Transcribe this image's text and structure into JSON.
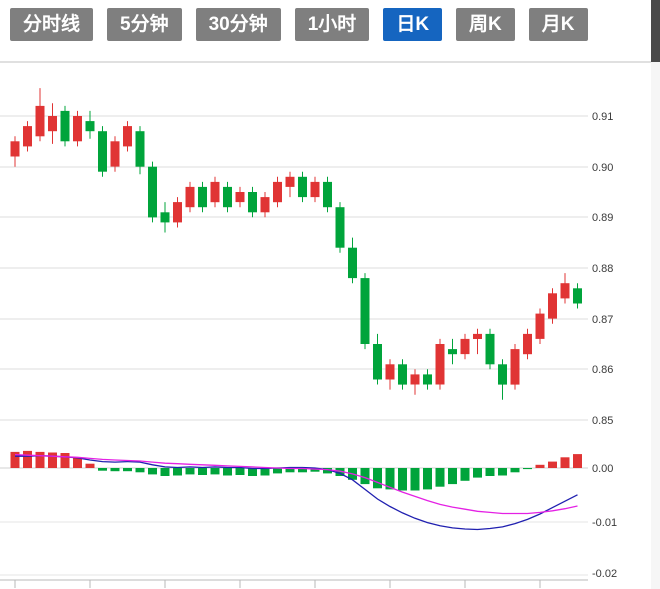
{
  "toolbar": {
    "buttons": [
      {
        "label": "分时线",
        "active": false
      },
      {
        "label": "5分钟",
        "active": false
      },
      {
        "label": "30分钟",
        "active": false
      },
      {
        "label": "1小时",
        "active": false
      },
      {
        "label": "日K",
        "active": true
      },
      {
        "label": "周K",
        "active": false
      },
      {
        "label": "月K",
        "active": false
      }
    ],
    "active_color": "#1565c0",
    "inactive_color": "#7f7f7f"
  },
  "colors": {
    "up": "#e03434",
    "down": "#00a43b",
    "dif_line": "#2020b0",
    "dea_line": "#e421e4",
    "grid": "#dcdcdc",
    "axis_text": "#3a3a3a"
  },
  "chart_data": {
    "type": "candlestick+macd",
    "convention": "red=up, green=down (CN style)",
    "price_tick_labels": [
      "0.91",
      "0.90",
      "0.89",
      "0.88",
      "0.87",
      "0.86",
      "0.85"
    ],
    "macd_tick_labels": [
      "0.00",
      "-0.01",
      "-0.02"
    ],
    "price_axis_range": [
      0.846,
      0.921
    ],
    "macd_axis_range": [
      -0.021,
      0.003
    ],
    "candles_ohlc": [
      [
        0.902,
        0.906,
        0.9,
        0.905
      ],
      [
        0.904,
        0.909,
        0.903,
        0.908
      ],
      [
        0.906,
        0.9155,
        0.905,
        0.912
      ],
      [
        0.907,
        0.9125,
        0.9045,
        0.91
      ],
      [
        0.911,
        0.912,
        0.904,
        0.905
      ],
      [
        0.905,
        0.911,
        0.904,
        0.91
      ],
      [
        0.909,
        0.911,
        0.9055,
        0.907
      ],
      [
        0.907,
        0.908,
        0.898,
        0.899
      ],
      [
        0.9,
        0.906,
        0.899,
        0.905
      ],
      [
        0.904,
        0.909,
        0.903,
        0.908
      ],
      [
        0.907,
        0.908,
        0.8985,
        0.9
      ],
      [
        0.9,
        0.901,
        0.889,
        0.89
      ],
      [
        0.891,
        0.893,
        0.887,
        0.889
      ],
      [
        0.889,
        0.894,
        0.888,
        0.893
      ],
      [
        0.892,
        0.897,
        0.891,
        0.896
      ],
      [
        0.896,
        0.897,
        0.891,
        0.892
      ],
      [
        0.893,
        0.898,
        0.892,
        0.897
      ],
      [
        0.896,
        0.897,
        0.891,
        0.892
      ],
      [
        0.893,
        0.896,
        0.892,
        0.895
      ],
      [
        0.895,
        0.896,
        0.89,
        0.891
      ],
      [
        0.891,
        0.895,
        0.89,
        0.894
      ],
      [
        0.893,
        0.898,
        0.892,
        0.897
      ],
      [
        0.896,
        0.899,
        0.894,
        0.898
      ],
      [
        0.898,
        0.899,
        0.893,
        0.894
      ],
      [
        0.894,
        0.898,
        0.893,
        0.897
      ],
      [
        0.897,
        0.898,
        0.891,
        0.892
      ],
      [
        0.892,
        0.893,
        0.883,
        0.884
      ],
      [
        0.884,
        0.886,
        0.877,
        0.878
      ],
      [
        0.878,
        0.879,
        0.864,
        0.865
      ],
      [
        0.865,
        0.867,
        0.857,
        0.858
      ],
      [
        0.858,
        0.862,
        0.856,
        0.861
      ],
      [
        0.861,
        0.862,
        0.856,
        0.857
      ],
      [
        0.857,
        0.86,
        0.855,
        0.859
      ],
      [
        0.859,
        0.86,
        0.856,
        0.857
      ],
      [
        0.857,
        0.866,
        0.856,
        0.865
      ],
      [
        0.864,
        0.866,
        0.861,
        0.863
      ],
      [
        0.863,
        0.867,
        0.862,
        0.866
      ],
      [
        0.866,
        0.868,
        0.863,
        0.867
      ],
      [
        0.867,
        0.868,
        0.86,
        0.861
      ],
      [
        0.861,
        0.862,
        0.854,
        0.857
      ],
      [
        0.857,
        0.865,
        0.856,
        0.864
      ],
      [
        0.863,
        0.868,
        0.862,
        0.867
      ],
      [
        0.866,
        0.872,
        0.865,
        0.871
      ],
      [
        0.87,
        0.876,
        0.869,
        0.875
      ],
      [
        0.874,
        0.879,
        0.873,
        0.877
      ],
      [
        0.876,
        0.877,
        0.872,
        0.873
      ]
    ],
    "macd": {
      "hist": [
        0.003,
        0.0032,
        0.003,
        0.0029,
        0.0028,
        0.002,
        0.0008,
        -0.0005,
        -0.0006,
        -0.0006,
        -0.0008,
        -0.0012,
        -0.0015,
        -0.0014,
        -0.0012,
        -0.0013,
        -0.0012,
        -0.0014,
        -0.0013,
        -0.0015,
        -0.0014,
        -0.001,
        -0.0008,
        -0.0008,
        -0.0007,
        -0.001,
        -0.0015,
        -0.0022,
        -0.003,
        -0.0038,
        -0.004,
        -0.0042,
        -0.0042,
        -0.004,
        -0.0035,
        -0.003,
        -0.0024,
        -0.0018,
        -0.0015,
        -0.0014,
        -0.0008,
        -0.0002,
        0.0006,
        0.0012,
        0.002,
        0.0026
      ],
      "dif": [
        0.0022,
        0.0022,
        0.0023,
        0.0022,
        0.0021,
        0.0019,
        0.0015,
        0.0012,
        0.0011,
        0.0012,
        0.0011,
        0.0006,
        0.0002,
        0.0001,
        0.0002,
        0.0001,
        0.0002,
        0.0001,
        0.0001,
        -0.0001,
        -0.0001,
        0.0,
        0.0001,
        0.0001,
        0.0,
        -0.0003,
        -0.001,
        -0.0022,
        -0.004,
        -0.0058,
        -0.0072,
        -0.0084,
        -0.0094,
        -0.0102,
        -0.0108,
        -0.0112,
        -0.0114,
        -0.0115,
        -0.0113,
        -0.011,
        -0.0104,
        -0.0096,
        -0.0086,
        -0.0074,
        -0.0062,
        -0.005
      ],
      "dea": [
        0.0025,
        0.0024,
        0.0023,
        0.0022,
        0.0021,
        0.002,
        0.0018,
        0.0016,
        0.0015,
        0.0014,
        0.0013,
        0.0011,
        0.0009,
        0.0008,
        0.0007,
        0.0006,
        0.0005,
        0.0004,
        0.0003,
        0.0002,
        0.0001,
        0.0,
        -0.0001,
        -0.0001,
        -0.0002,
        -0.0003,
        -0.0006,
        -0.0011,
        -0.0018,
        -0.0027,
        -0.0036,
        -0.0045,
        -0.0053,
        -0.0061,
        -0.0068,
        -0.0073,
        -0.0077,
        -0.0081,
        -0.0083,
        -0.0085,
        -0.0085,
        -0.0085,
        -0.0083,
        -0.008,
        -0.0076,
        -0.0071
      ]
    }
  }
}
